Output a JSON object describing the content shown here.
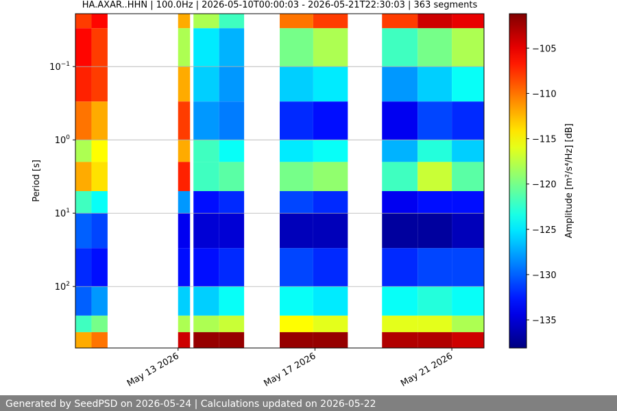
{
  "chart_data": {
    "type": "spectrogram",
    "title": "HA.AXAR..HHN | 100.0Hz | 2026-05-10T00:00:03 - 2026-05-21T22:30:03 | 363 segments",
    "y_label": "Period [s]",
    "colorbar_label": "Amplitude [m²/s⁴/Hz] [dB]",
    "log_y": true,
    "grid": true,
    "xlim": [
      0,
      11.94
    ],
    "xticks": [
      {
        "value": 3,
        "label": "May 13 2026"
      },
      {
        "value": 7,
        "label": "May 17 2026"
      },
      {
        "value": 11,
        "label": "May 21 2026"
      }
    ],
    "ylim": [
      690,
      0.019
    ],
    "yticks": [
      {
        "value": 0.1,
        "label": "10",
        "exponent": "−1"
      },
      {
        "value": 1,
        "label": "10",
        "exponent": "0"
      },
      {
        "value": 10,
        "label": "10",
        "exponent": "1"
      },
      {
        "value": 100,
        "label": "10",
        "exponent": "2"
      }
    ],
    "clim": [
      -138.1,
      -101.2
    ],
    "cticks": [
      {
        "value": -105,
        "label": "−105"
      },
      {
        "value": -110,
        "label": "−110"
      },
      {
        "value": -115,
        "label": "−115"
      },
      {
        "value": -120,
        "label": "−120"
      },
      {
        "value": -125,
        "label": "−125"
      },
      {
        "value": -130,
        "label": "−130"
      },
      {
        "value": -135,
        "label": "−135"
      }
    ],
    "period_edges": [
      0.019,
      0.03,
      0.1,
      0.3,
      1,
      2,
      5,
      10,
      30,
      100,
      250,
      420,
      690
    ],
    "columns": [
      {
        "start": 0,
        "end": 0.47,
        "amplitudes": [
          -108,
          -106,
          -107,
          -110,
          -118,
          -112,
          -122,
          -130,
          -132,
          -130,
          -122,
          -112
        ]
      },
      {
        "start": 0.47,
        "end": 0.94,
        "amplitudes": [
          -106,
          -108,
          -108,
          -112,
          -115,
          -114,
          -124,
          -131,
          -133,
          -128,
          -120,
          -110
        ]
      },
      {
        "start": 3.0,
        "end": 3.35,
        "amplitudes": [
          -112,
          -118,
          -112,
          -108,
          -112,
          -107,
          -128,
          -134,
          -133,
          -126,
          -118,
          -104
        ]
      },
      {
        "start": 3.45,
        "end": 4.2,
        "amplitudes": [
          -118,
          -125,
          -126,
          -128,
          -122,
          -122,
          -133,
          -135,
          -133,
          -126,
          -118,
          -102
        ]
      },
      {
        "start": 4.2,
        "end": 4.93,
        "amplitudes": [
          -122,
          -127,
          -128,
          -129,
          -124,
          -121,
          -132,
          -135,
          -132,
          -124,
          -117,
          -102
        ]
      },
      {
        "start": 5.97,
        "end": 6.95,
        "amplitudes": [
          -110,
          -120,
          -126,
          -132,
          -125,
          -120,
          -131,
          -136,
          -131,
          -124,
          -115,
          -102
        ]
      },
      {
        "start": 6.95,
        "end": 7.96,
        "amplitudes": [
          -108,
          -118,
          -125,
          -133,
          -124,
          -119,
          -132,
          -136,
          -132,
          -125,
          -116,
          -102
        ]
      },
      {
        "start": 8.96,
        "end": 10.0,
        "amplitudes": [
          -108,
          -122,
          -128,
          -134,
          -127,
          -122,
          -134,
          -137,
          -132,
          -124,
          -116,
          -103
        ]
      },
      {
        "start": 10.0,
        "end": 11.0,
        "amplitudes": [
          -104,
          -120,
          -126,
          -131,
          -123,
          -117,
          -133,
          -137,
          -131,
          -123,
          -116,
          -103
        ]
      },
      {
        "start": 11.0,
        "end": 11.94,
        "amplitudes": [
          -105,
          -118,
          -124,
          -132,
          -126,
          -121,
          -133,
          -136,
          -131,
          -124,
          -118,
          -104
        ]
      }
    ],
    "footer": "Generated by SeedPSD on 2026-05-24 | Calculations updated on 2026-05-22"
  }
}
